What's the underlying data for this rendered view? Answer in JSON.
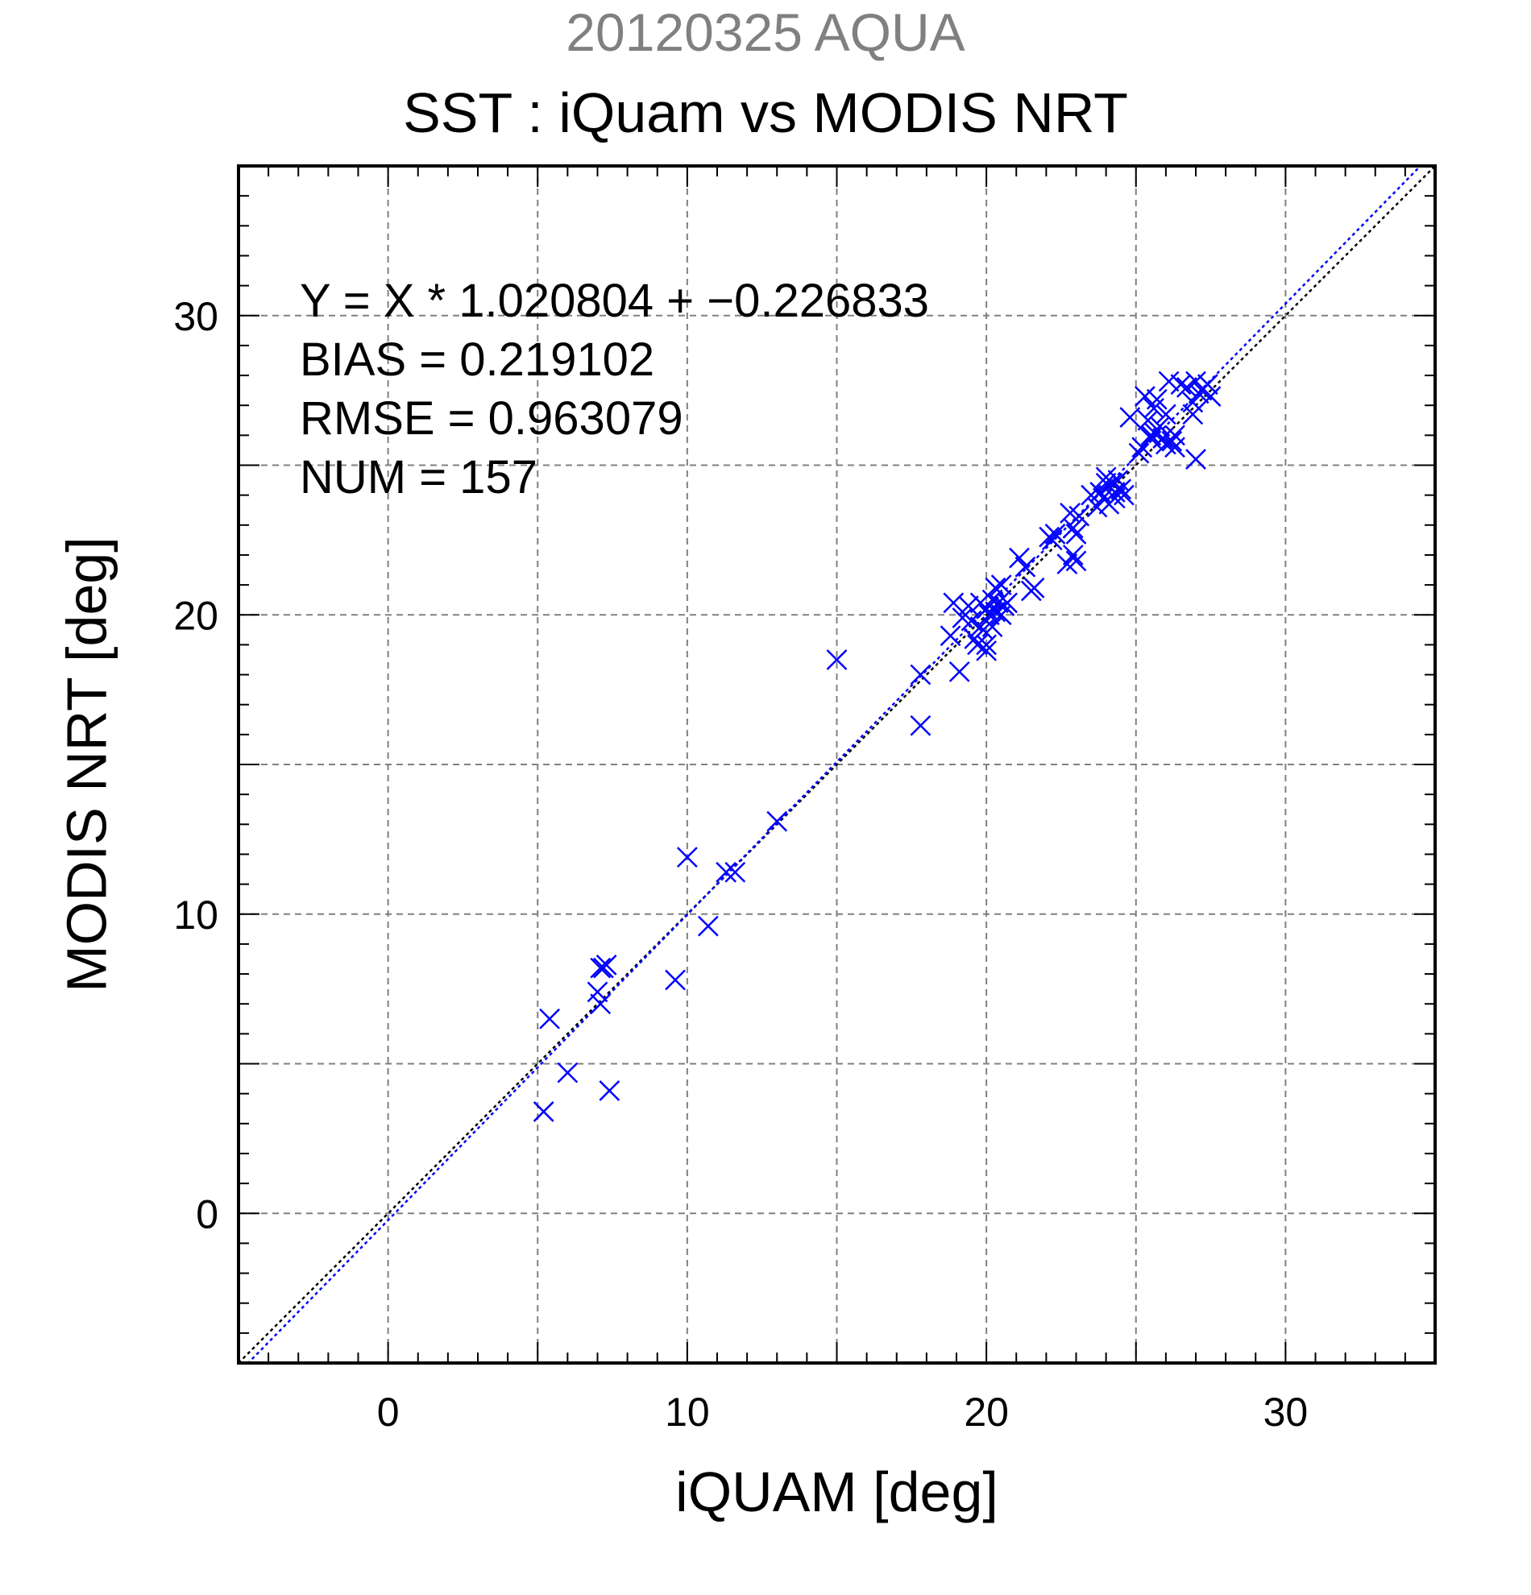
{
  "chart_data": {
    "type": "scatter",
    "supertitle": "20120325 AQUA",
    "title": "SST : iQuam vs MODIS NRT",
    "xlabel": "iQUAM [deg]",
    "ylabel": "MODIS NRT [deg]",
    "xlim": [
      -5,
      35
    ],
    "ylim": [
      -5,
      35
    ],
    "xticks": [
      0,
      10,
      20,
      30
    ],
    "yticks": [
      0,
      10,
      20,
      30
    ],
    "grid": true,
    "grid_step": 5,
    "annotations": [
      "Y = X * 1.020804 + −0.226833",
      "BIAS = 0.219102",
      "RMSE = 0.963079",
      "NUM = 157"
    ],
    "fit": {
      "slope": 1.020804,
      "intercept": -0.226833,
      "color": "#0000ff"
    },
    "reference_line": {
      "slope": 1,
      "intercept": 0,
      "color": "#000000"
    },
    "marker": "x",
    "marker_color": "#0000ff",
    "points": [
      [
        5.2,
        3.4
      ],
      [
        5.4,
        6.5
      ],
      [
        6.0,
        4.7
      ],
      [
        7.1,
        7.0
      ],
      [
        7.0,
        7.4
      ],
      [
        7.2,
        8.2
      ],
      [
        7.3,
        8.3
      ],
      [
        7.1,
        8.2
      ],
      [
        7.4,
        4.1
      ],
      [
        9.6,
        7.8
      ],
      [
        10.0,
        11.9
      ],
      [
        10.7,
        9.6
      ],
      [
        11.3,
        11.4
      ],
      [
        11.6,
        11.4
      ],
      [
        13.0,
        13.1
      ],
      [
        15.0,
        18.5
      ],
      [
        17.8,
        18.0
      ],
      [
        17.8,
        16.3
      ],
      [
        18.8,
        19.3
      ],
      [
        18.9,
        20.4
      ],
      [
        19.1,
        18.1
      ],
      [
        19.2,
        19.9
      ],
      [
        19.4,
        20.3
      ],
      [
        19.5,
        19.8
      ],
      [
        19.6,
        19.2
      ],
      [
        19.7,
        19.0
      ],
      [
        19.8,
        20.4
      ],
      [
        19.9,
        19.5
      ],
      [
        20.0,
        20.2
      ],
      [
        20.0,
        19.0
      ],
      [
        20.1,
        20.0
      ],
      [
        20.2,
        20.5
      ],
      [
        20.3,
        20.1
      ],
      [
        20.4,
        20.4
      ],
      [
        20.5,
        20.0
      ],
      [
        20.6,
        20.3
      ],
      [
        20.2,
        19.6
      ],
      [
        20.0,
        18.8
      ],
      [
        19.8,
        19.6
      ],
      [
        20.3,
        20.9
      ],
      [
        20.5,
        21.0
      ],
      [
        20.7,
        20.4
      ],
      [
        21.1,
        21.9
      ],
      [
        21.3,
        21.6
      ],
      [
        21.5,
        20.8
      ],
      [
        21.6,
        20.9
      ],
      [
        22.1,
        22.6
      ],
      [
        22.3,
        22.7
      ],
      [
        22.2,
        22.5
      ],
      [
        22.7,
        21.7
      ],
      [
        22.8,
        23.4
      ],
      [
        22.9,
        22.0
      ],
      [
        23.0,
        22.7
      ],
      [
        23.0,
        21.8
      ],
      [
        23.1,
        23.3
      ],
      [
        22.9,
        22.9
      ],
      [
        23.5,
        24.0
      ],
      [
        23.7,
        23.6
      ],
      [
        23.8,
        24.1
      ],
      [
        23.9,
        23.9
      ],
      [
        24.0,
        24.4
      ],
      [
        24.1,
        23.7
      ],
      [
        24.1,
        24.3
      ],
      [
        24.2,
        24.4
      ],
      [
        24.3,
        24.1
      ],
      [
        24.4,
        24.5
      ],
      [
        24.5,
        24.2
      ],
      [
        24.6,
        24.0
      ],
      [
        24.3,
        23.9
      ],
      [
        24.0,
        24.6
      ],
      [
        24.8,
        26.6
      ],
      [
        25.1,
        25.4
      ],
      [
        25.2,
        25.6
      ],
      [
        25.3,
        27.3
      ],
      [
        25.4,
        26.5
      ],
      [
        25.5,
        26.0
      ],
      [
        25.6,
        26.9
      ],
      [
        25.6,
        26.1
      ],
      [
        25.7,
        27.2
      ],
      [
        25.8,
        26.3
      ],
      [
        25.9,
        25.9
      ],
      [
        26.0,
        26.7
      ],
      [
        26.0,
        25.7
      ],
      [
        26.1,
        27.8
      ],
      [
        26.2,
        25.8
      ],
      [
        26.3,
        25.6
      ],
      [
        26.3,
        26.0
      ],
      [
        26.5,
        27.7
      ],
      [
        26.7,
        27.6
      ],
      [
        26.9,
        26.7
      ],
      [
        26.9,
        27.1
      ],
      [
        27.0,
        27.8
      ],
      [
        27.0,
        25.2
      ],
      [
        27.2,
        27.5
      ],
      [
        27.4,
        27.7
      ],
      [
        27.5,
        27.3
      ],
      [
        27.1,
        27.4
      ],
      [
        25.5,
        25.9
      ]
    ]
  }
}
